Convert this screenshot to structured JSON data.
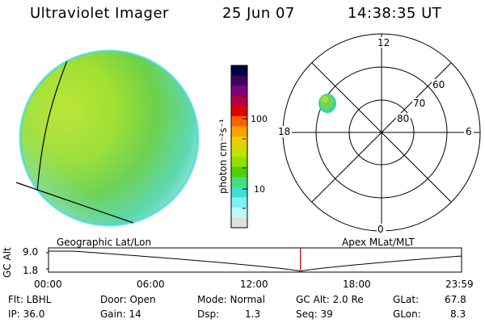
{
  "header": {
    "instrument": "Ultraviolet Imager",
    "date": "25 Jun 07",
    "time": "14:38:35 UT"
  },
  "colorbar": {
    "unit_label": "photon cm⁻²s⁻¹",
    "tick_labels": [
      "100",
      "10"
    ],
    "colors": [
      "#000040",
      "#400060",
      "#800080",
      "#b00040",
      "#e00000",
      "#ff6000",
      "#ffa000",
      "#e8d000",
      "#c8e000",
      "#90e000",
      "#50d000",
      "#40e080",
      "#40e0d0",
      "#80f0f0",
      "#c0f8f8",
      "#e0e0e0"
    ]
  },
  "polar": {
    "mlt_labels": [
      "12",
      "18",
      "6",
      "0"
    ],
    "mlat_labels": [
      "60",
      "70",
      "80"
    ]
  },
  "orbit": {
    "left_title": "Geographic Lat/Lon",
    "right_title": "Apex MLat/MLT",
    "y_axis_label": "GC Alt",
    "y_ticks": [
      "9.0",
      "1.8"
    ],
    "x_ticks": [
      "00:00",
      "06:00",
      "12:00",
      "18:00",
      "23:59"
    ],
    "current_time_fraction": 0.61
  },
  "info": {
    "flt": "Flt: LBHL",
    "door": "Door: Open",
    "mode": "Mode: Normal",
    "gcalt": "GC Alt: 2.0 Re",
    "glat_label": "GLat:",
    "glat": "67.8",
    "ip": "IP: 36.0",
    "gain": "Gain: 14",
    "dsp_label": "Dsp:",
    "dsp": "1.3",
    "seq": "Seq: 39",
    "glon_label": "GLon:",
    "glon": "8.3"
  }
}
